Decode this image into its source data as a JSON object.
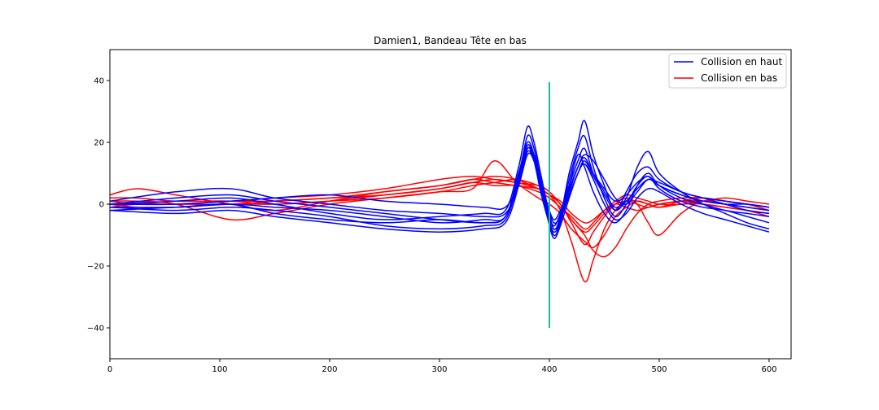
{
  "chart_data": {
    "type": "line",
    "title": "Damien1, Bandeau Tête en bas",
    "xlabel": "",
    "ylabel": "",
    "xlim": [
      0,
      620
    ],
    "ylim": [
      -50,
      50
    ],
    "x_ticks": [
      0,
      100,
      200,
      300,
      400,
      500,
      600
    ],
    "y_ticks": [
      -40,
      -20,
      0,
      20,
      40
    ],
    "grid": false,
    "legend": {
      "placement": "top-right",
      "entries": [
        {
          "label": "Collision en haut",
          "color": "#0000ff"
        },
        {
          "label": "Collision en bas",
          "color": "#ff0000"
        }
      ]
    },
    "vertical_marker": {
      "x": 400,
      "y_range": [
        -40,
        39.5
      ],
      "color": "#1abc9c"
    },
    "groups": [
      {
        "legend_label": "Collision en haut",
        "color": "#0000ff",
        "series": [
          {
            "x": [
              0,
              60,
              110,
              150,
              200,
              250,
              300,
              340,
              360,
              372,
              380,
              386,
              392,
              398,
              404,
              410,
              418,
              426,
              432,
              440,
              450,
              460,
              470,
              480,
              490,
              500,
              520,
              540,
              560,
              580,
              600
            ],
            "y": [
              -2,
              -1,
              0,
              -3,
              -5,
              -6,
              -5,
              -6,
              -4,
              10,
              18,
              16,
              8,
              -2,
              -10,
              -6,
              6,
              16,
              12,
              4,
              -3,
              -6,
              -2,
              6,
              10,
              6,
              2,
              0,
              -2,
              -3,
              -4
            ]
          },
          {
            "x": [
              0,
              60,
              110,
              150,
              200,
              250,
              300,
              340,
              360,
              372,
              380,
              386,
              392,
              398,
              404,
              410,
              418,
              426,
              432,
              440,
              450,
              460,
              470,
              480,
              490,
              500,
              520,
              540,
              560,
              580,
              600
            ],
            "y": [
              0,
              1,
              2,
              0,
              -3,
              -5,
              -4,
              -3,
              -2,
              12,
              25,
              20,
              10,
              0,
              -8,
              -4,
              10,
              20,
              27,
              16,
              6,
              -2,
              4,
              10,
              12,
              8,
              4,
              2,
              0,
              -2,
              -3
            ]
          },
          {
            "x": [
              0,
              60,
              110,
              150,
              200,
              250,
              300,
              340,
              360,
              372,
              380,
              386,
              392,
              398,
              404,
              410,
              418,
              426,
              432,
              440,
              450,
              460,
              470,
              480,
              490,
              500,
              520,
              540,
              560,
              580,
              600
            ],
            "y": [
              -1,
              -2,
              -1,
              -2,
              -4,
              -7,
              -8,
              -7,
              -5,
              8,
              19,
              15,
              6,
              -3,
              -9,
              -5,
              8,
              18,
              22,
              12,
              2,
              -4,
              0,
              6,
              9,
              5,
              1,
              -1,
              -2,
              -4,
              -6
            ]
          },
          {
            "x": [
              0,
              60,
              110,
              150,
              200,
              250,
              300,
              340,
              360,
              372,
              380,
              386,
              392,
              398,
              404,
              410,
              418,
              426,
              432,
              440,
              450,
              460,
              470,
              480,
              490,
              500,
              520,
              540,
              560,
              580,
              600
            ],
            "y": [
              1,
              4,
              5,
              2,
              0,
              -2,
              -3,
              -4,
              -3,
              6,
              16,
              14,
              5,
              -1,
              -6,
              -4,
              4,
              12,
              16,
              14,
              8,
              2,
              0,
              4,
              8,
              6,
              3,
              1,
              0,
              -1,
              -2
            ]
          },
          {
            "x": [
              0,
              60,
              110,
              150,
              200,
              250,
              300,
              340,
              360,
              372,
              380,
              386,
              392,
              398,
              404,
              410,
              418,
              426,
              432,
              440,
              450,
              460,
              470,
              480,
              490,
              500,
              520,
              540,
              560,
              580,
              600
            ],
            "y": [
              0,
              2,
              3,
              1,
              -1,
              -3,
              -5,
              -6,
              -4,
              9,
              22,
              18,
              8,
              -2,
              -7,
              -3,
              6,
              14,
              18,
              10,
              4,
              -1,
              2,
              12,
              17,
              10,
              4,
              0,
              -3,
              -6,
              -8
            ]
          },
          {
            "x": [
              0,
              60,
              110,
              150,
              200,
              250,
              300,
              340,
              360,
              372,
              380,
              386,
              392,
              398,
              404,
              410,
              418,
              426,
              432,
              440,
              450,
              460,
              470,
              480,
              490,
              500,
              520,
              540,
              560,
              580,
              600
            ],
            "y": [
              -2,
              -3,
              -2,
              -4,
              -6,
              -8,
              -9,
              -8,
              -6,
              6,
              18,
              14,
              4,
              -4,
              -11,
              -7,
              2,
              10,
              13,
              8,
              0,
              -5,
              -3,
              2,
              5,
              4,
              0,
              -3,
              -5,
              -7,
              -9
            ]
          },
          {
            "x": [
              0,
              60,
              110,
              150,
              200,
              250,
              300,
              340,
              360,
              372,
              380,
              386,
              392,
              398,
              404,
              410,
              418,
              426,
              432,
              440,
              450,
              460,
              470,
              480,
              490,
              500,
              520,
              540,
              560,
              580,
              600
            ],
            "y": [
              0,
              0,
              1,
              2,
              3,
              1,
              0,
              -1,
              -1,
              7,
              17,
              14,
              6,
              0,
              -5,
              -2,
              5,
              12,
              15,
              10,
              5,
              1,
              3,
              7,
              9,
              6,
              3,
              1,
              0,
              0,
              -1
            ]
          },
          {
            "x": [
              0,
              60,
              110,
              150,
              200,
              250,
              300,
              340,
              360,
              372,
              380,
              386,
              392,
              398,
              404,
              410,
              418,
              426,
              432,
              440,
              450,
              460,
              470,
              480,
              490,
              500,
              520,
              540,
              560,
              580,
              600
            ],
            "y": [
              -1,
              -1,
              0,
              -1,
              -2,
              -4,
              -6,
              -5,
              -4,
              10,
              20,
              16,
              7,
              -1,
              -8,
              -5,
              3,
              10,
              14,
              9,
              3,
              -2,
              1,
              5,
              8,
              7,
              4,
              2,
              1,
              0,
              -1
            ]
          }
        ]
      },
      {
        "legend_label": "Collision en bas",
        "color": "#ff0000",
        "series": [
          {
            "x": [
              0,
              25,
              60,
              110,
              150,
              200,
              250,
              300,
              330,
              350,
              370,
              390,
              400,
              410,
              420,
              432,
              440,
              450,
              460,
              470,
              480,
              490,
              500,
              520,
              540,
              560,
              580,
              600
            ],
            "y": [
              3,
              5,
              3,
              0,
              -2,
              1,
              4,
              6,
              8,
              9,
              8,
              5,
              3,
              -2,
              -12,
              -25,
              -18,
              -8,
              -2,
              1,
              0,
              -1,
              0,
              1,
              0,
              -1,
              -2,
              -4
            ]
          },
          {
            "x": [
              0,
              25,
              60,
              110,
              150,
              200,
              250,
              300,
              330,
              350,
              370,
              390,
              400,
              410,
              420,
              432,
              440,
              450,
              460,
              470,
              480,
              490,
              500,
              520,
              540,
              560,
              580,
              600
            ],
            "y": [
              1,
              1,
              0,
              -5,
              -3,
              0,
              2,
              4,
              5,
              14,
              7,
              2,
              0,
              -3,
              -8,
              -12,
              -14,
              -10,
              -4,
              -1,
              1,
              0,
              -1,
              1,
              2,
              1,
              0,
              -2
            ]
          },
          {
            "x": [
              0,
              25,
              60,
              110,
              150,
              200,
              250,
              300,
              330,
              350,
              370,
              390,
              400,
              410,
              420,
              432,
              440,
              450,
              460,
              470,
              480,
              490,
              500,
              520,
              540,
              560,
              580,
              600
            ],
            "y": [
              0,
              0,
              1,
              1,
              2,
              3,
              5,
              8,
              9,
              8,
              7,
              6,
              4,
              0,
              -5,
              -10,
              -15,
              -17,
              -14,
              -8,
              -3,
              0,
              1,
              2,
              2,
              1,
              0,
              -1
            ]
          },
          {
            "x": [
              0,
              25,
              60,
              110,
              150,
              200,
              250,
              300,
              330,
              350,
              370,
              390,
              400,
              410,
              420,
              432,
              440,
              450,
              460,
              470,
              480,
              490,
              500,
              520,
              540,
              560,
              580,
              600
            ],
            "y": [
              -1,
              0,
              0,
              0,
              1,
              2,
              4,
              6,
              8,
              7,
              6,
              5,
              3,
              0,
              -6,
              -13,
              -9,
              -4,
              0,
              2,
              0,
              -6,
              -10,
              -3,
              1,
              0,
              -2,
              -3
            ]
          },
          {
            "x": [
              0,
              25,
              60,
              110,
              150,
              200,
              250,
              300,
              330,
              350,
              370,
              390,
              400,
              410,
              420,
              432,
              440,
              450,
              460,
              470,
              480,
              490,
              500,
              520,
              540,
              560,
              580,
              600
            ],
            "y": [
              2,
              2,
              1,
              1,
              0,
              1,
              3,
              5,
              7,
              6,
              6,
              4,
              2,
              -1,
              -4,
              -8,
              -6,
              -2,
              1,
              3,
              2,
              1,
              0,
              0,
              1,
              2,
              1,
              0
            ]
          },
          {
            "x": [
              0,
              25,
              60,
              110,
              150,
              200,
              250,
              300,
              330,
              350,
              370,
              390,
              400,
              410,
              420,
              432,
              440,
              450,
              460,
              470,
              480,
              490,
              500,
              520,
              540,
              560,
              580,
              600
            ],
            "y": [
              0,
              -1,
              -1,
              0,
              0,
              1,
              2,
              4,
              6,
              7,
              8,
              6,
              4,
              0,
              -5,
              -9,
              -7,
              -3,
              0,
              -1,
              -2,
              -1,
              0,
              1,
              1,
              0,
              -1,
              -2
            ]
          },
          {
            "x": [
              0,
              25,
              60,
              110,
              150,
              200,
              250,
              300,
              330,
              350,
              370,
              390,
              400,
              410,
              420,
              432,
              440,
              450,
              460,
              470,
              480,
              490,
              500,
              520,
              540,
              560,
              580,
              600
            ],
            "y": [
              1,
              0,
              0,
              1,
              1,
              2,
              3,
              5,
              7,
              8,
              7,
              5,
              3,
              1,
              -3,
              -6,
              -5,
              -2,
              0,
              1,
              1,
              0,
              -1,
              0,
              0,
              -1,
              -2,
              -3
            ]
          }
        ]
      }
    ]
  }
}
